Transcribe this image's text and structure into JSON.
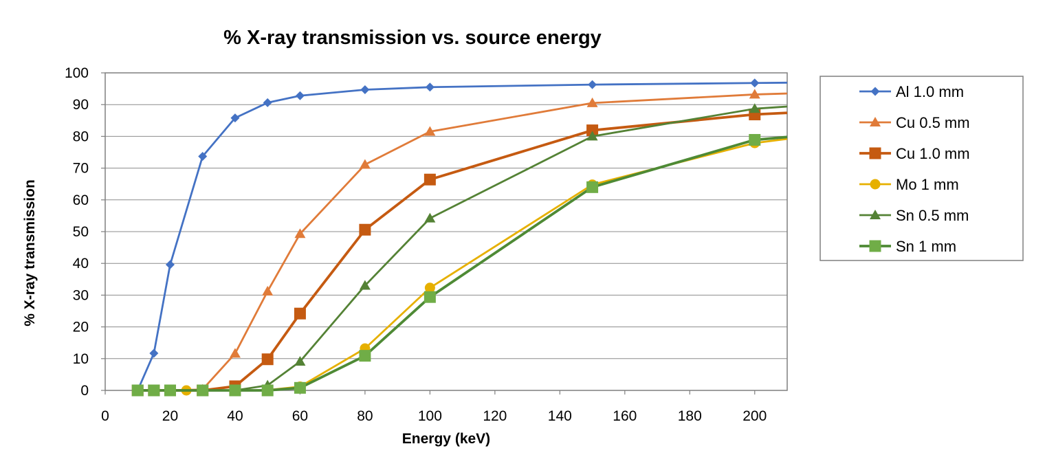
{
  "chart_data": {
    "type": "line",
    "title": "% X-ray transmission vs. source energy",
    "xlabel": "Energy (keV)",
    "ylabel": "% X-ray transmission",
    "xlim": [
      0,
      210
    ],
    "ylim": [
      0,
      100
    ],
    "x_ticks": [
      0,
      20,
      40,
      60,
      80,
      100,
      120,
      140,
      160,
      180,
      200
    ],
    "y_ticks": [
      0,
      10,
      20,
      30,
      40,
      50,
      60,
      70,
      80,
      90,
      100
    ],
    "grid": "horizontal",
    "legend_position": "right",
    "series": [
      {
        "name": "Al 1.0 mm",
        "color": "#4472C4",
        "marker": "diamond",
        "points": [
          [
            10,
            0
          ],
          [
            15,
            11.7
          ],
          [
            20,
            39.6
          ],
          [
            30,
            73.7
          ],
          [
            40,
            85.8
          ],
          [
            50,
            90.6
          ],
          [
            60,
            92.8
          ],
          [
            80,
            94.7
          ],
          [
            100,
            95.5
          ],
          [
            150,
            96.3
          ],
          [
            200,
            96.8
          ],
          [
            210,
            96.9
          ]
        ]
      },
      {
        "name": "Cu 0.5 mm",
        "color": "#E07B39",
        "marker": "triangle",
        "points": [
          [
            10,
            0
          ],
          [
            15,
            0
          ],
          [
            20,
            0
          ],
          [
            30,
            0.3
          ],
          [
            40,
            11.6
          ],
          [
            50,
            31.2
          ],
          [
            60,
            49.3
          ],
          [
            80,
            71.1
          ],
          [
            100,
            81.5
          ],
          [
            150,
            90.5
          ],
          [
            200,
            93.2
          ],
          [
            210,
            93.5
          ]
        ]
      },
      {
        "name": "Cu 1.0 mm",
        "color": "#C55A11",
        "marker": "square",
        "points": [
          [
            10,
            0
          ],
          [
            15,
            0
          ],
          [
            20,
            0
          ],
          [
            30,
            0
          ],
          [
            40,
            1.3
          ],
          [
            50,
            9.8
          ],
          [
            60,
            24.2
          ],
          [
            80,
            50.6
          ],
          [
            100,
            66.4
          ],
          [
            150,
            81.9
          ],
          [
            200,
            86.9
          ],
          [
            210,
            87.4
          ]
        ]
      },
      {
        "name": "Mo 1 mm",
        "color": "#E6B000",
        "marker": "circle",
        "points": [
          [
            10,
            0
          ],
          [
            15,
            0
          ],
          [
            20,
            0
          ],
          [
            25,
            0
          ],
          [
            30,
            0
          ],
          [
            40,
            0
          ],
          [
            50,
            0.1
          ],
          [
            60,
            1.2
          ],
          [
            80,
            13.2
          ],
          [
            100,
            32.3
          ],
          [
            150,
            64.8
          ],
          [
            200,
            77.9
          ],
          [
            210,
            79.2
          ]
        ]
      },
      {
        "name": "Sn 0.5 mm",
        "color": "#548235",
        "marker": "triangle",
        "points": [
          [
            10,
            0
          ],
          [
            15,
            0
          ],
          [
            20,
            0
          ],
          [
            30,
            0
          ],
          [
            40,
            0
          ],
          [
            50,
            1.6
          ],
          [
            60,
            9.1
          ],
          [
            80,
            33.0
          ],
          [
            100,
            54.2
          ],
          [
            150,
            80.0
          ],
          [
            200,
            88.7
          ],
          [
            210,
            89.4
          ]
        ]
      },
      {
        "name": "Sn 1 mm",
        "color": "#70AD47",
        "line_color": "#4E8A35",
        "marker": "square",
        "points": [
          [
            10,
            0
          ],
          [
            15,
            0
          ],
          [
            20,
            0
          ],
          [
            30,
            0
          ],
          [
            40,
            0
          ],
          [
            50,
            0
          ],
          [
            60,
            0.8
          ],
          [
            80,
            10.9
          ],
          [
            100,
            29.4
          ],
          [
            150,
            64.0
          ],
          [
            200,
            78.9
          ],
          [
            210,
            79.8
          ]
        ]
      }
    ]
  }
}
